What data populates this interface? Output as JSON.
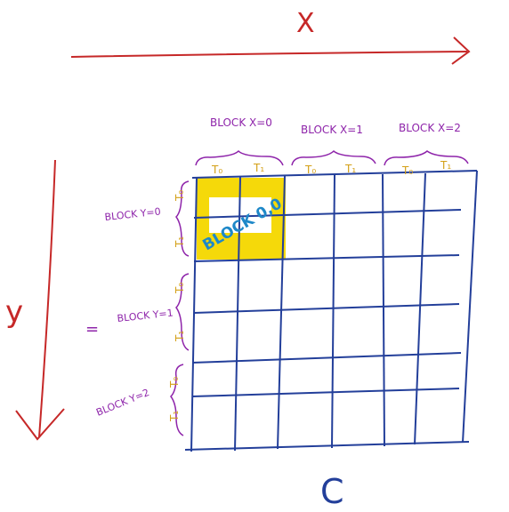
{
  "axes": {
    "x_label": "X",
    "y_label": "y",
    "c_label": "C"
  },
  "block_x_labels": [
    "BLOCK X=0",
    "BLOCK X=1",
    "BLOCK X=2"
  ],
  "block_y_labels": [
    "BLOCK Y=0",
    "BLOCK Y=1",
    "BLOCK Y=2"
  ],
  "thread_labels": {
    "t0": "T₀",
    "t1": "T₁"
  },
  "highlight_label": "BLOCK 0,0",
  "dash_mark": "=",
  "colors": {
    "red": "#c62828",
    "purple": "#8e24aa",
    "gold": "#d4a017",
    "yellow": "#f5d90a",
    "blue": "#1e88c8",
    "grid": "#233f9a"
  }
}
